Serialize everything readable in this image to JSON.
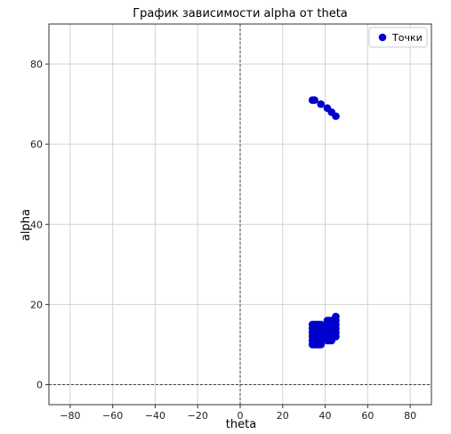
{
  "chart_data": {
    "type": "scatter",
    "title": "График зависимости alpha от theta",
    "xlabel": "theta",
    "ylabel": "alpha",
    "xlim": [
      -90,
      90
    ],
    "ylim": [
      -5,
      90
    ],
    "xticks": [
      -80,
      -60,
      -40,
      -20,
      0,
      20,
      40,
      60,
      80
    ],
    "yticks": [
      0,
      20,
      40,
      60,
      80
    ],
    "tick_labels_x": [
      "−80",
      "−60",
      "−40",
      "−20",
      "0",
      "20",
      "40",
      "60",
      "80"
    ],
    "tick_labels_y": [
      "0",
      "20",
      "40",
      "60",
      "80"
    ],
    "grid": true,
    "reference_lines": {
      "x": 0,
      "y": 0,
      "style": "dashed"
    },
    "legend": {
      "position": "top-right",
      "entries": [
        "Точки"
      ]
    },
    "series": [
      {
        "name": "Точки",
        "color": "#0000cc",
        "points": [
          [
            34,
            71
          ],
          [
            35,
            71
          ],
          [
            38,
            70
          ],
          [
            41,
            69
          ],
          [
            43,
            68
          ],
          [
            45,
            67
          ],
          [
            34,
            10
          ],
          [
            34,
            11
          ],
          [
            34,
            12
          ],
          [
            34,
            13
          ],
          [
            34,
            14
          ],
          [
            34,
            15
          ],
          [
            35,
            10
          ],
          [
            35,
            11
          ],
          [
            35,
            12
          ],
          [
            35,
            13
          ],
          [
            35,
            14
          ],
          [
            35,
            15
          ],
          [
            36,
            10
          ],
          [
            36,
            11
          ],
          [
            36,
            12
          ],
          [
            36,
            13
          ],
          [
            36,
            14
          ],
          [
            36,
            15
          ],
          [
            37,
            10
          ],
          [
            37,
            11
          ],
          [
            37,
            12
          ],
          [
            37,
            13
          ],
          [
            37,
            14
          ],
          [
            37,
            15
          ],
          [
            38,
            10
          ],
          [
            38,
            11
          ],
          [
            38,
            12
          ],
          [
            38,
            13
          ],
          [
            38,
            14
          ],
          [
            38,
            15
          ],
          [
            41,
            11
          ],
          [
            41,
            12
          ],
          [
            41,
            13
          ],
          [
            41,
            14
          ],
          [
            41,
            15
          ],
          [
            41,
            16
          ],
          [
            42,
            11
          ],
          [
            42,
            12
          ],
          [
            42,
            13
          ],
          [
            42,
            14
          ],
          [
            42,
            15
          ],
          [
            42,
            16
          ],
          [
            43,
            11
          ],
          [
            43,
            12
          ],
          [
            43,
            13
          ],
          [
            43,
            14
          ],
          [
            43,
            15
          ],
          [
            43,
            16
          ],
          [
            44,
            12
          ],
          [
            44,
            13
          ],
          [
            44,
            14
          ],
          [
            44,
            15
          ],
          [
            44,
            16
          ],
          [
            45,
            12
          ],
          [
            45,
            13
          ],
          [
            45,
            14
          ],
          [
            45,
            15
          ],
          [
            45,
            16
          ],
          [
            45,
            17
          ]
        ]
      }
    ]
  }
}
